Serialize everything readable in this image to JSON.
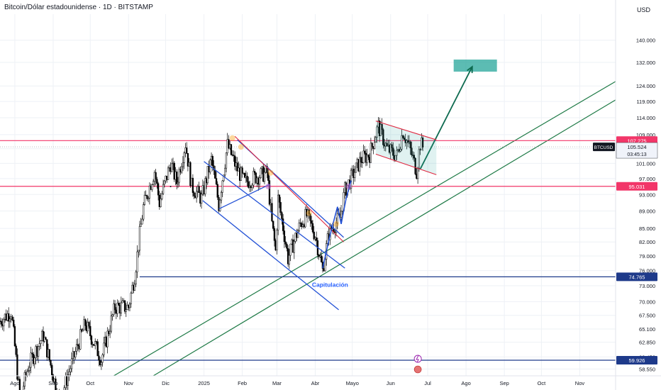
{
  "header": {
    "title": "Bitcoin/Dólar estadounidense · 1D · BITSTAMP",
    "currency": "USD"
  },
  "chart_data": {
    "type": "line",
    "title": "Bitcoin/Dólar estadounidense · 1D · BITSTAMP",
    "symbol": "BTCUSD",
    "ylabel": "USD",
    "ylim": [
      57500,
      150000
    ],
    "xlim": [
      "2024-07-20",
      "2025-11-30"
    ],
    "grid": true,
    "price_ticks": [
      140000,
      132000,
      124000,
      119000,
      114000,
      109000,
      105000,
      101000,
      97000,
      93000,
      89000,
      85000,
      82000,
      79000,
      76000,
      73000,
      70000,
      67500,
      65100,
      62850,
      60450,
      58550
    ],
    "price_tick_labels": [
      "140.000",
      "132.000",
      "124.000",
      "119.000",
      "114.000",
      "109.000",
      "105.000",
      "101.000",
      "97.000",
      "93.000",
      "89.000",
      "85.000",
      "82.000",
      "79.000",
      "76.000",
      "73.000",
      "70.000",
      "67.500",
      "65.100",
      "62.850",
      "60.450",
      "58.550"
    ],
    "time_ticks": [
      {
        "label": "Ago",
        "date": "2024-08-01"
      },
      {
        "label": "Sep",
        "date": "2024-09-01"
      },
      {
        "label": "Oct",
        "date": "2024-10-01"
      },
      {
        "label": "Nov",
        "date": "2024-11-01"
      },
      {
        "label": "Dic",
        "date": "2024-12-01"
      },
      {
        "label": "2025",
        "date": "2025-01-01"
      },
      {
        "label": "Feb",
        "date": "2025-02-01"
      },
      {
        "label": "Mar",
        "date": "2025-03-01"
      },
      {
        "label": "Abr",
        "date": "2025-04-01"
      },
      {
        "label": "Mayo",
        "date": "2025-05-01"
      },
      {
        "label": "Jun",
        "date": "2025-06-01"
      },
      {
        "label": "Jul",
        "date": "2025-07-01"
      },
      {
        "label": "Ago",
        "date": "2025-08-01"
      },
      {
        "label": "Sep",
        "date": "2025-09-01"
      },
      {
        "label": "Oct",
        "date": "2025-10-01"
      },
      {
        "label": "Nov",
        "date": "2025-11-01"
      }
    ],
    "price_path": [
      [
        "2024-07-20",
        66500
      ],
      [
        "2024-07-29",
        68200
      ],
      [
        "2024-08-05",
        54000
      ],
      [
        "2024-08-12",
        59000
      ],
      [
        "2024-08-24",
        64000
      ],
      [
        "2024-09-06",
        53500
      ],
      [
        "2024-09-17",
        60000
      ],
      [
        "2024-09-27",
        66000
      ],
      [
        "2024-10-10",
        60000
      ],
      [
        "2024-10-21",
        69000
      ],
      [
        "2024-11-01",
        69000
      ],
      [
        "2024-11-06",
        75000
      ],
      [
        "2024-11-13",
        90000
      ],
      [
        "2024-11-22",
        99000
      ],
      [
        "2024-11-26",
        91000
      ],
      [
        "2024-12-05",
        101000
      ],
      [
        "2024-12-10",
        96000
      ],
      [
        "2024-12-17",
        106500
      ],
      [
        "2024-12-22",
        95000
      ],
      [
        "2024-12-30",
        92000
      ],
      [
        "2025-01-07",
        102000
      ],
      [
        "2025-01-13",
        90500
      ],
      [
        "2025-01-20",
        106000
      ],
      [
        "2025-01-27",
        100000
      ],
      [
        "2025-02-03",
        96000
      ],
      [
        "2025-02-12",
        97500
      ],
      [
        "2025-02-21",
        98500
      ],
      [
        "2025-02-25",
        86000
      ],
      [
        "2025-02-28",
        80000
      ],
      [
        "2025-03-02",
        92000
      ],
      [
        "2025-03-10",
        78500
      ],
      [
        "2025-03-20",
        86000
      ],
      [
        "2025-03-25",
        88000
      ],
      [
        "2025-04-01",
        83500
      ],
      [
        "2025-04-07",
        76000
      ],
      [
        "2025-04-12",
        84000
      ],
      [
        "2025-04-21",
        87500
      ],
      [
        "2025-04-25",
        94000
      ],
      [
        "2025-05-08",
        102000
      ],
      [
        "2025-05-15",
        103500
      ],
      [
        "2025-05-22",
        111500
      ],
      [
        "2025-05-29",
        105000
      ],
      [
        "2025-06-06",
        103000
      ],
      [
        "2025-06-11",
        110000
      ],
      [
        "2025-06-17",
        104500
      ],
      [
        "2025-06-22",
        99000
      ],
      [
        "2025-06-25",
        106500
      ],
      [
        "2025-06-27",
        105524
      ]
    ],
    "current": {
      "symbol": "BTCUSD",
      "value": 105524,
      "label": "105.524",
      "countdown": "03:45:13"
    },
    "horizontal_levels": [
      {
        "value": 107275,
        "label": "107.275",
        "color": "#f23669"
      },
      {
        "value": 95031,
        "label": "95.031",
        "color": "#f23669"
      },
      {
        "value": 74765,
        "label": "74.765",
        "color": "#1e3a8a"
      },
      {
        "value": 59926,
        "label": "59.926",
        "color": "#1e3a8a"
      }
    ],
    "annotations": [
      {
        "text": "Capitulación",
        "date": "2025-04-13",
        "value": 72800,
        "color": "#2962ff"
      }
    ],
    "target_zone": {
      "x0": "2025-07-22",
      "x1": "2025-08-26",
      "y0": 128800,
      "y1": 133000,
      "color": "#26a69a"
    },
    "target_arrow": {
      "from": [
        "2025-06-25",
        99500
      ],
      "to": [
        "2025-08-06",
        130500
      ],
      "color": "#0e6b50"
    },
    "icons": [
      "lightning-icon",
      "us-flag-icon"
    ]
  }
}
